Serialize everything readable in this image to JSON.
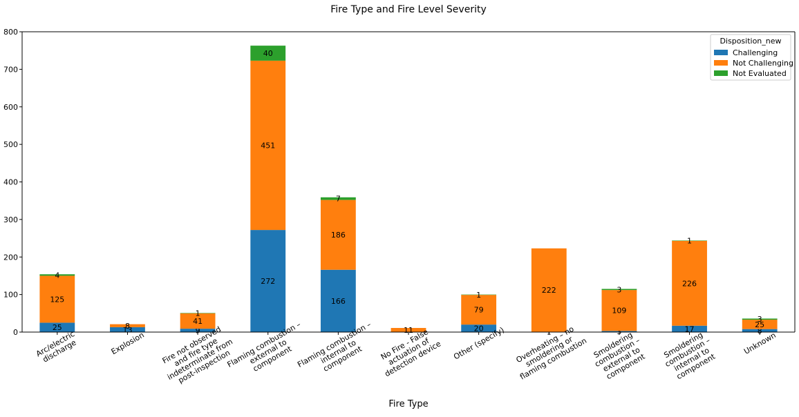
{
  "chart_data": {
    "type": "bar",
    "stacked": true,
    "title": "Fire Type and Fire Level Severity",
    "xlabel": "Fire Type",
    "ylabel": "",
    "ylim": [
      0,
      800
    ],
    "yticks": [
      0,
      100,
      200,
      300,
      400,
      500,
      600,
      700,
      800
    ],
    "grid": false,
    "legend": {
      "title": "Disposition_new",
      "placement": "top-right"
    },
    "categories": [
      [
        "Arc/electric",
        "discharge"
      ],
      [
        "Explosion"
      ],
      [
        "Fire not observed",
        "and fire type",
        "indeterminate from",
        "post-inspection"
      ],
      [
        "Flaming combustion –",
        "external to",
        "component"
      ],
      [
        "Flaming combustion –",
        "internal to",
        "component"
      ],
      [
        "No Fire - False",
        "actuation of",
        "detection device"
      ],
      [
        "Other (specify)"
      ],
      [
        "Overheating – no",
        "smoldering or",
        "flaming combustion"
      ],
      [
        "Smoldering",
        "combustion –",
        "external to",
        "component"
      ],
      [
        "Smoldering",
        "combustion –",
        "internal to",
        "component"
      ],
      [
        "Unknown"
      ]
    ],
    "series": [
      {
        "name": "Challenging",
        "color": "#1f77b4",
        "values": [
          25,
          13,
          9,
          272,
          166,
          0,
          20,
          1,
          3,
          17,
          8
        ],
        "labels": [
          "25",
          "13",
          "9",
          "272",
          "166",
          "",
          "20",
          "1",
          "3",
          "17",
          "8"
        ]
      },
      {
        "name": "Not Challenging",
        "color": "#ff7f0e",
        "values": [
          125,
          8,
          41,
          451,
          186,
          11,
          79,
          222,
          109,
          226,
          25
        ],
        "labels": [
          "125",
          "8",
          "41",
          "451",
          "186",
          "11",
          "79",
          "222",
          "109",
          "226",
          "25"
        ]
      },
      {
        "name": "Not Evaluated",
        "color": "#2ca02c",
        "values": [
          4,
          0,
          1,
          40,
          7,
          0,
          1,
          0,
          3,
          1,
          3
        ],
        "labels": [
          "4",
          "",
          "1",
          "40",
          "7",
          "",
          "1",
          "",
          "3",
          "1",
          "3"
        ]
      }
    ]
  }
}
